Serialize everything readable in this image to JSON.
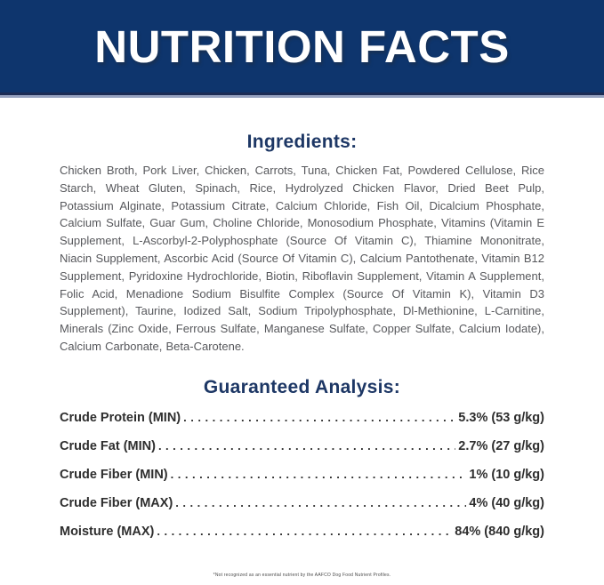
{
  "banner": {
    "title": "NUTRITION FACTS"
  },
  "ingredients": {
    "heading": "Ingredients:",
    "text": "Chicken Broth, Pork Liver, Chicken, Carrots, Tuna, Chicken Fat, Powdered Cellulose, Rice Starch, Wheat Gluten, Spinach, Rice, Hydrolyzed Chicken Flavor, Dried Beet Pulp, Potassium Alginate, Potassium Citrate, Calcium Chloride, Fish Oil, Dicalcium Phosphate, Calcium Sulfate, Guar Gum, Choline Chloride, Monosodium Phosphate, Vitamins (Vitamin E Supplement, L-Ascorbyl-2-Polyphosphate (Source Of Vitamin C), Thiamine Mononitrate, Niacin Supplement, Ascorbic Acid (Source Of Vitamin C), Calcium Pantothenate, Vitamin B12 Supplement, Pyridoxine Hydrochloride, Biotin, Riboflavin Supplement, Vitamin A Supplement, Folic Acid, Menadione Sodium Bisulfite Complex (Source Of Vitamin K), Vitamin D3 Supplement), Taurine, Iodized Salt, Sodium Tripolyphosphate, Dl-Methionine, L-Carnitine, Minerals (Zinc Oxide, Ferrous Sulfate, Manganese Sulfate, Copper Sulfate, Calcium Iodate), Calcium Carbonate, Beta-Carotene."
  },
  "guaranteed_analysis": {
    "heading": "Guaranteed Analysis:",
    "rows": [
      {
        "label": "Crude Protein (MIN)",
        "value": "5.3% (53 g/kg)"
      },
      {
        "label": "Crude Fat (MIN)",
        "value": "2.7% (27 g/kg)"
      },
      {
        "label": "Crude Fiber (MIN)",
        "value": "1% (10 g/kg)"
      },
      {
        "label": "Crude Fiber (MAX)",
        "value": "4% (40 g/kg)"
      },
      {
        "label": "Moisture (MAX)",
        "value": "84% (840 g/kg)"
      }
    ]
  },
  "footnote": "*Not recognized as an essential nutrient by the AAFCO Dog Food Nutrient Profiles.",
  "colors": {
    "banner_bg": "#0e356d",
    "banner_border_dark": "#1c2c55",
    "banner_underline": "#96a2c0",
    "title_text": "#ffffff",
    "heading_text": "#1d3765",
    "body_text": "#57585c",
    "row_text": "#2e2e2e"
  }
}
